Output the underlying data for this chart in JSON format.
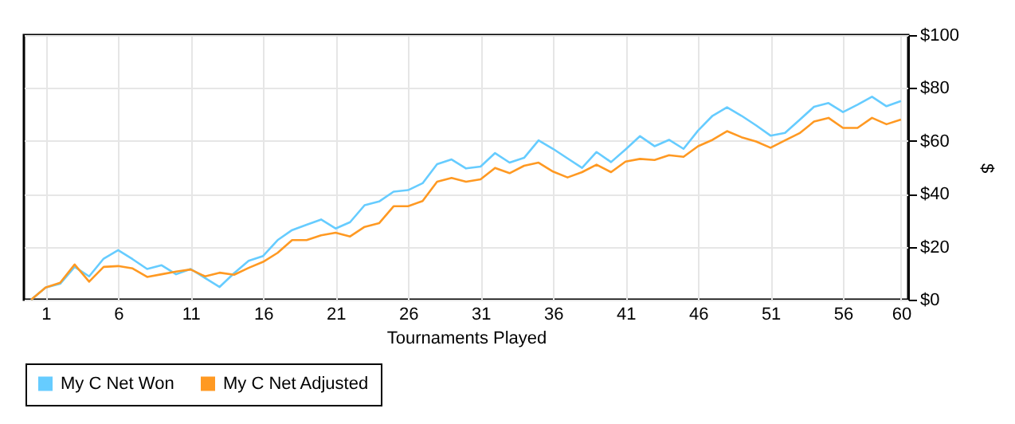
{
  "chart_data": {
    "type": "line",
    "xlabel": "Tournaments Played",
    "ylabel": "$",
    "x": [
      0,
      1,
      2,
      3,
      4,
      5,
      6,
      7,
      8,
      9,
      10,
      11,
      12,
      13,
      14,
      15,
      16,
      17,
      18,
      19,
      20,
      21,
      22,
      23,
      24,
      25,
      26,
      27,
      28,
      29,
      30,
      31,
      32,
      33,
      34,
      35,
      36,
      37,
      38,
      39,
      40,
      41,
      42,
      43,
      44,
      45,
      46,
      47,
      48,
      49,
      50,
      51,
      52,
      53,
      54,
      55,
      56,
      57,
      58,
      59,
      60
    ],
    "series": [
      {
        "name": "My C Net Won",
        "color": "#66ccff",
        "values": [
          0,
          4.6,
          6,
          12.4,
          8.8,
          15.5,
          18.7,
          15.3,
          11.6,
          13,
          9.6,
          11.6,
          8.2,
          4.8,
          10,
          14.7,
          16.5,
          22.5,
          26.3,
          28.3,
          30.3,
          26.9,
          29.3,
          35.7,
          37.1,
          40.8,
          41.4,
          44,
          51.2,
          53,
          49.6,
          50.3,
          55.4,
          51.8,
          53.6,
          60.2,
          57,
          53.4,
          49.8,
          55.8,
          52,
          56.8,
          61.8,
          58,
          60.4,
          57,
          63.9,
          69.5,
          72.7,
          69.5,
          65.9,
          62,
          63,
          67.9,
          72.9,
          74.3,
          70.9,
          73.7,
          76.7,
          73.1,
          75.1
        ]
      },
      {
        "name": "My C Net Adjusted",
        "color": "#ff9922",
        "values": [
          0,
          4.6,
          6.4,
          13.3,
          6.8,
          12.4,
          12.7,
          11.8,
          8.6,
          9.6,
          10.6,
          11.4,
          8.8,
          10.2,
          9.4,
          12,
          14.3,
          17.7,
          22.5,
          22.5,
          24.3,
          25.3,
          23.9,
          27.5,
          28.9,
          35.3,
          35.3,
          37.3,
          44.6,
          46,
          44.6,
          45.5,
          49.8,
          47.8,
          50.6,
          51.8,
          48.4,
          46.2,
          48.2,
          51,
          48.2,
          52.2,
          53.2,
          52.8,
          54.6,
          54,
          58,
          60.4,
          63.7,
          61.4,
          59.8,
          57.4,
          60.2,
          62.9,
          67.3,
          68.7,
          64.9,
          64.9,
          68.7,
          66.3,
          68.1
        ]
      }
    ],
    "xlim": [
      -0.5,
      60.5
    ],
    "xticks": [
      1,
      6,
      11,
      16,
      21,
      26,
      31,
      36,
      41,
      46,
      51,
      56,
      60
    ],
    "ylim": [
      0,
      100
    ],
    "yticks": [
      {
        "value": 0,
        "label": "$0"
      },
      {
        "value": 20,
        "label": "$20"
      },
      {
        "value": 40,
        "label": "$40"
      },
      {
        "value": 60,
        "label": "$60"
      },
      {
        "value": 80,
        "label": "$80"
      },
      {
        "value": 100,
        "label": "$100"
      }
    ],
    "grid": true,
    "legend": "bottom left",
    "line_style": "solid"
  }
}
